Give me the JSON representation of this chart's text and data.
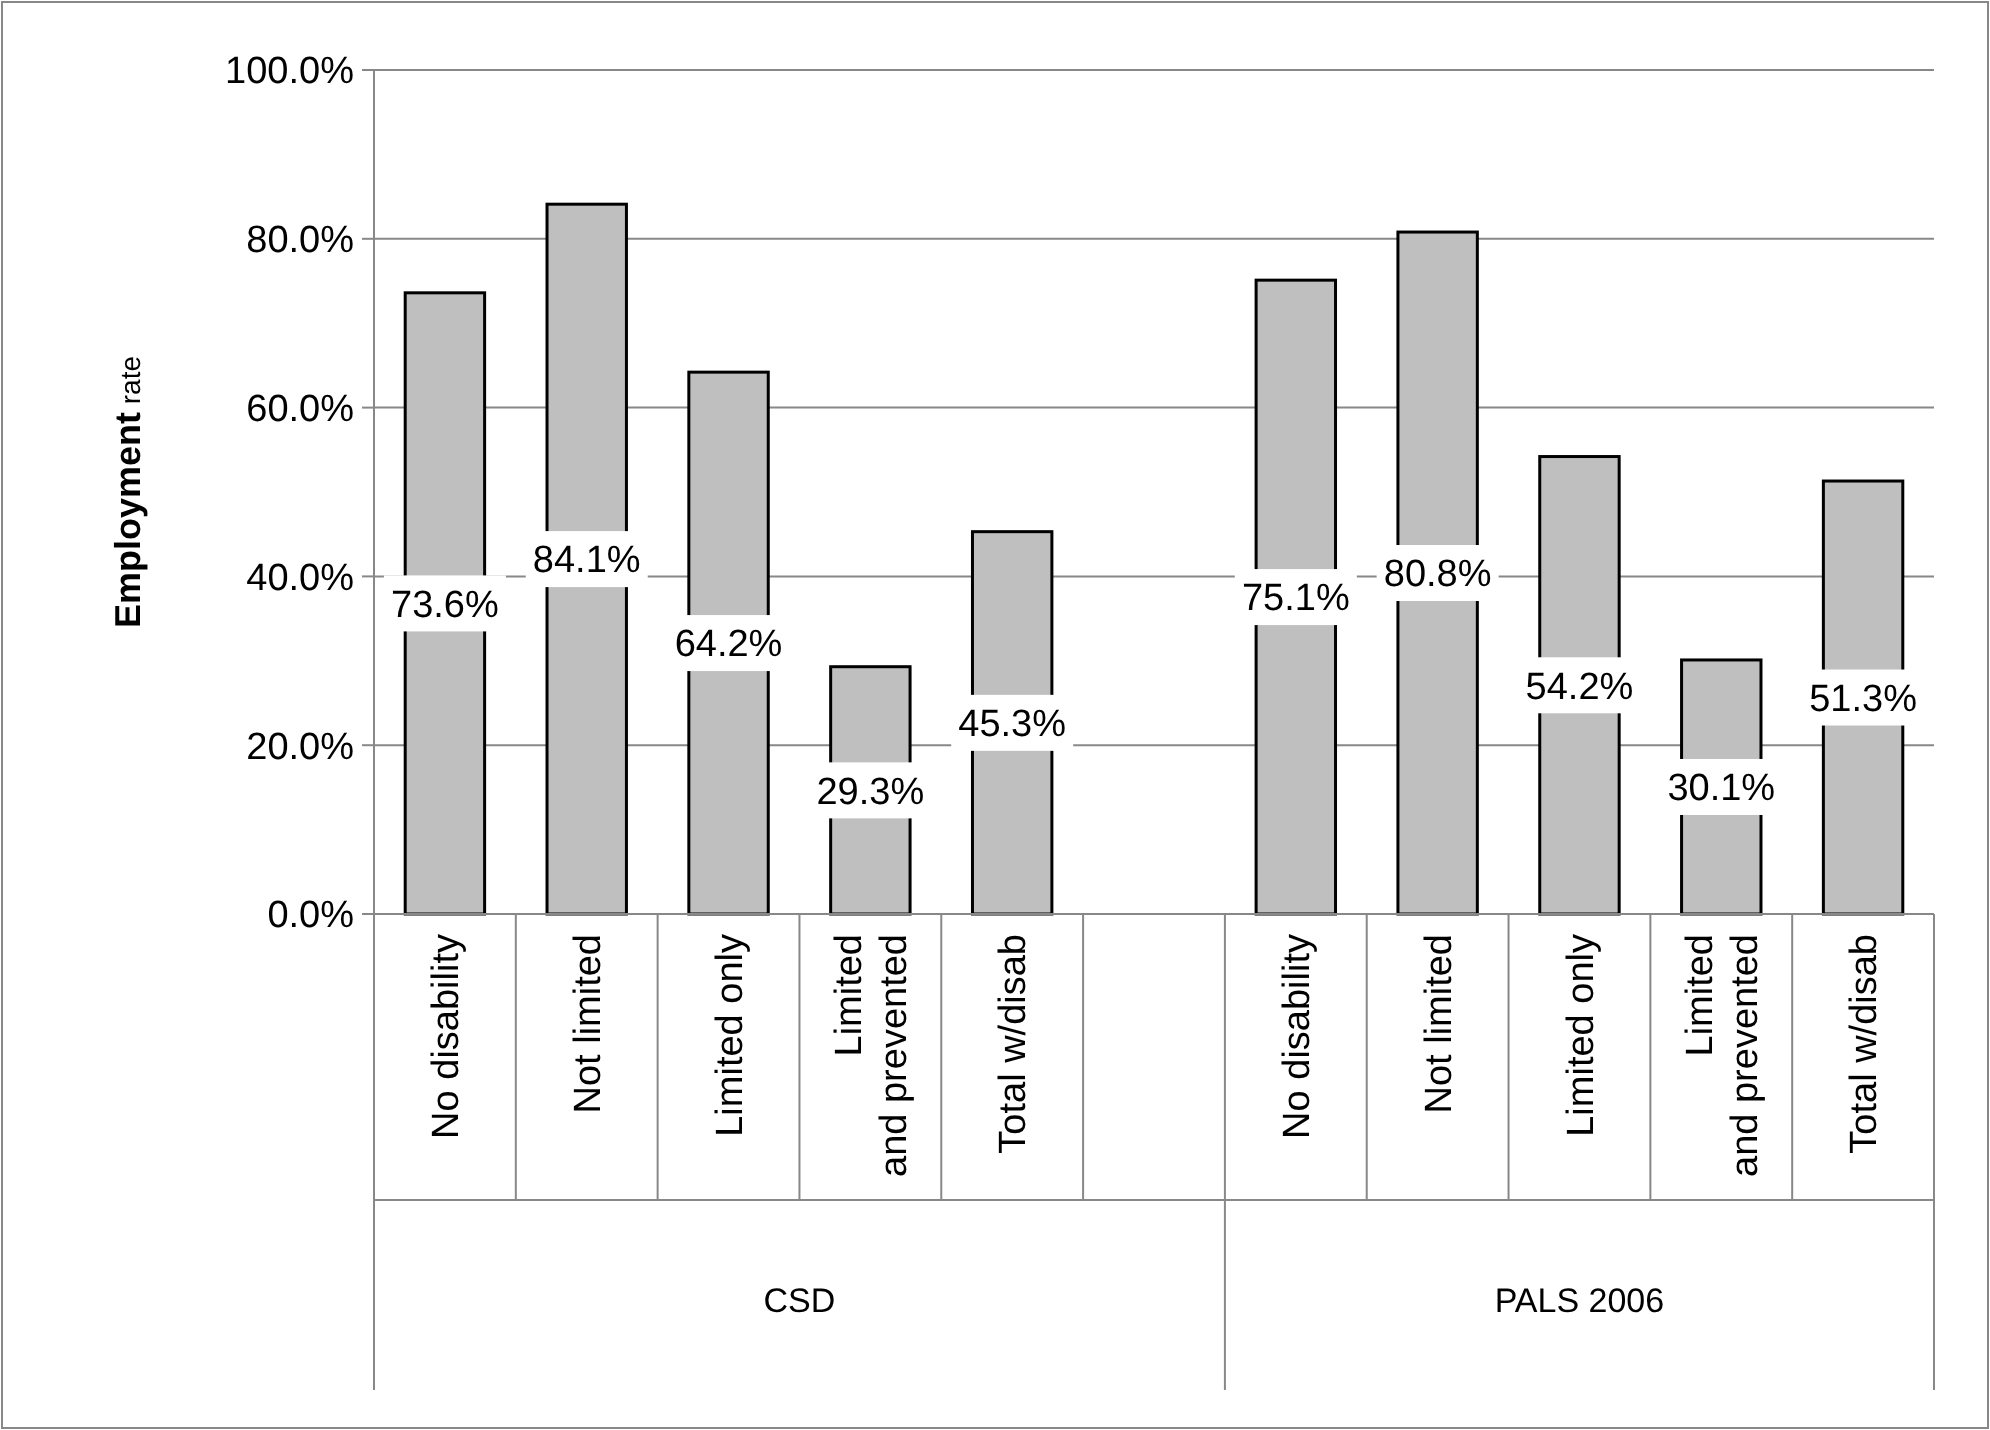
{
  "chart_data": {
    "type": "bar",
    "ylabel": "Employment rate",
    "categories": [
      "No disability",
      "Not limited",
      "Limited only",
      "Limited and prevented",
      "Total w/disab",
      null,
      "No disability",
      "Not limited",
      "Limited only",
      "Limited and prevented",
      "Total w/disab"
    ],
    "annotations": [
      "CSD",
      "PALS 2006"
    ],
    "values": [
      73.6,
      84.1,
      64.2,
      29.3,
      45.3,
      null,
      75.1,
      80.8,
      54.2,
      30.1,
      51.3
    ],
    "value_labels": [
      "73.6%",
      "84.1%",
      "64.2%",
      "29.3%",
      "45.3%",
      null,
      "75.1%",
      "80.8%",
      "54.2%",
      "30.1%",
      "51.3%"
    ],
    "color": "#bfbfbf",
    "ylim": [
      0,
      100
    ],
    "yticks": [
      {
        "value": 0,
        "label": "0.0%"
      },
      {
        "value": 20,
        "label": "20.0%"
      },
      {
        "value": 40,
        "label": "40.0%"
      },
      {
        "value": 60,
        "label": "60.0%"
      },
      {
        "value": 80,
        "label": "80.0%"
      },
      {
        "value": 100,
        "label": "100.0%"
      }
    ],
    "grid": "y"
  }
}
